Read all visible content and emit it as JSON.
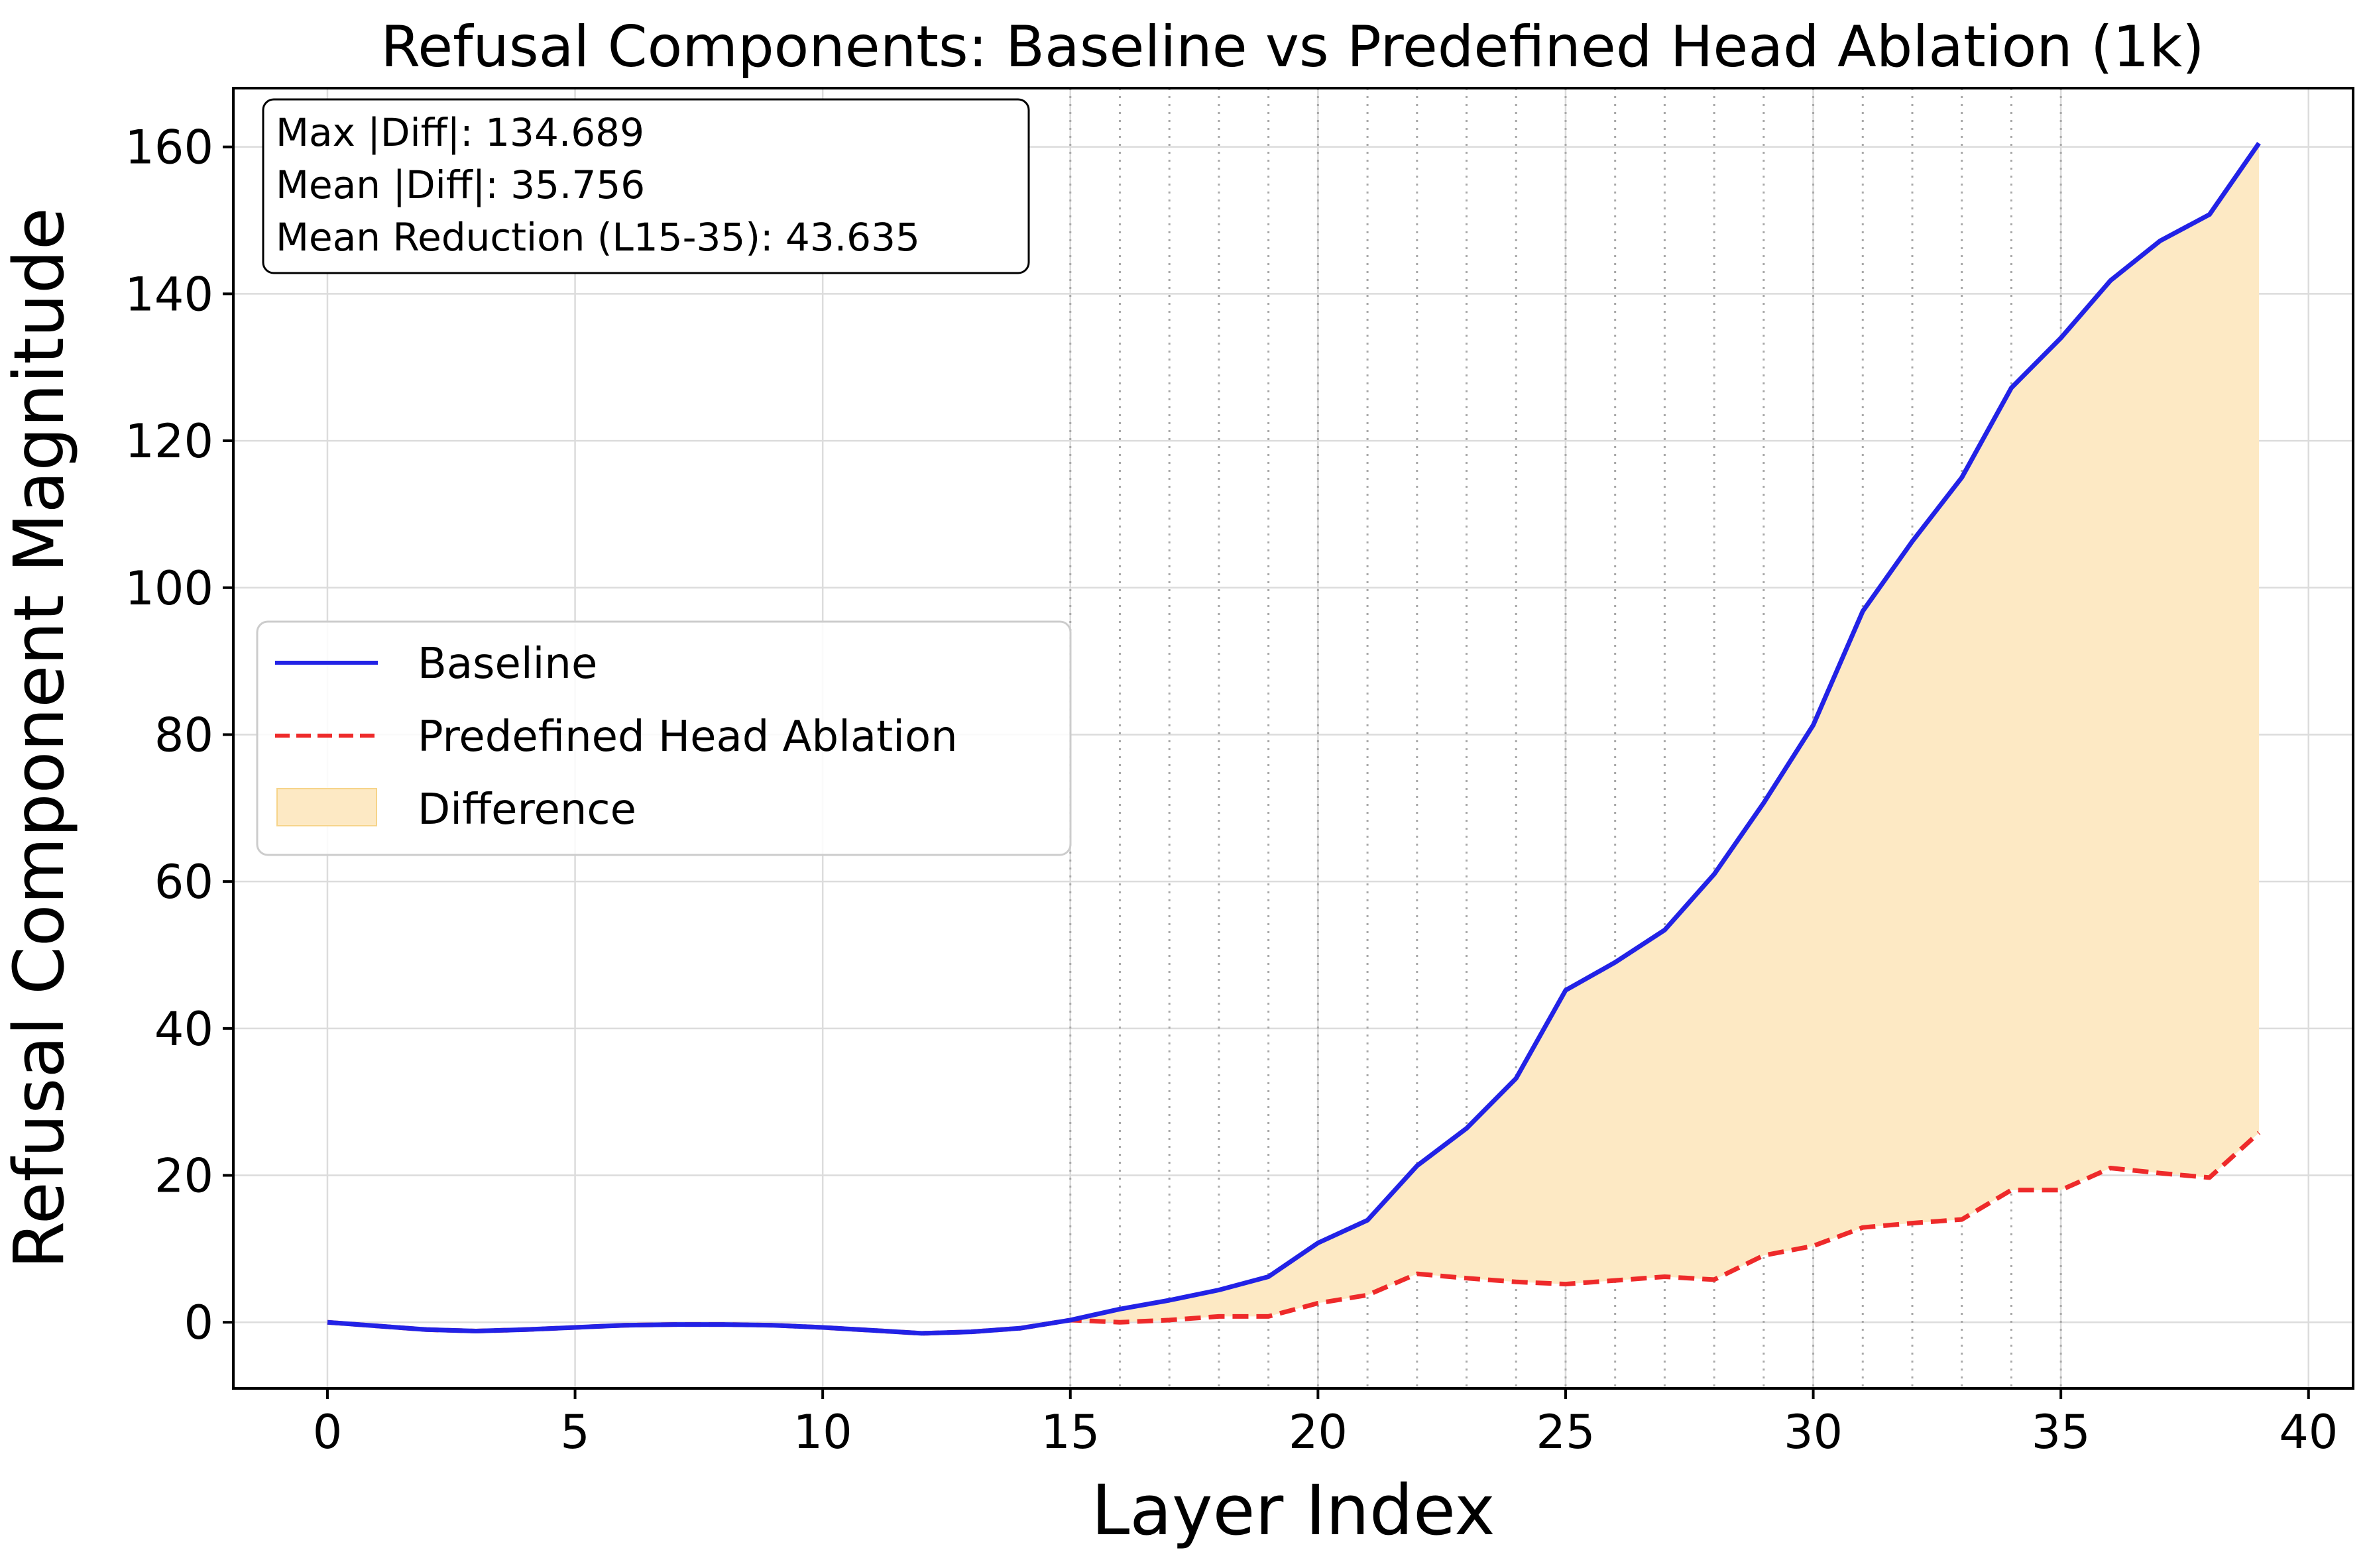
{
  "chart_data": {
    "type": "line",
    "title": "Refusal Components: Baseline vs Predefined Head Ablation (1k)",
    "xlabel": "Layer Index",
    "ylabel": "Refusal Component Magnitude",
    "xlim": [
      -1.9,
      40.9
    ],
    "ylim": [
      -9,
      168
    ],
    "xticks": [
      0,
      5,
      10,
      15,
      20,
      25,
      30,
      35,
      40
    ],
    "yticks": [
      0,
      20,
      40,
      60,
      80,
      100,
      120,
      140,
      160
    ],
    "grid": true,
    "legend_position": "center-left",
    "highlighted_layers": [
      15,
      16,
      17,
      18,
      19,
      20,
      21,
      22,
      23,
      24,
      25,
      26,
      27,
      28,
      29,
      30,
      31,
      32,
      33,
      34,
      35
    ],
    "x": [
      0,
      1,
      2,
      3,
      4,
      5,
      6,
      7,
      8,
      9,
      10,
      11,
      12,
      13,
      14,
      15,
      16,
      17,
      18,
      19,
      20,
      21,
      22,
      23,
      24,
      25,
      26,
      27,
      28,
      29,
      30,
      31,
      32,
      33,
      34,
      35,
      36,
      37,
      38,
      39
    ],
    "series": [
      {
        "name": "Baseline",
        "color": "#2222e6",
        "style": "solid",
        "values": [
          0,
          -0.5,
          -1.0,
          -1.2,
          -1.0,
          -0.7,
          -0.4,
          -0.3,
          -0.3,
          -0.4,
          -0.7,
          -1.1,
          -1.5,
          -1.3,
          -0.8,
          0.3,
          1.8,
          3.0,
          4.4,
          6.2,
          10.8,
          13.9,
          21.3,
          26.4,
          33.2,
          45.2,
          49.0,
          53.4,
          61.0,
          70.7,
          81.3,
          96.8,
          106.3,
          115.0,
          127.2,
          134.0,
          141.8,
          147.2,
          150.8,
          160.5
        ]
      },
      {
        "name": "Predefined Head Ablation",
        "color": "#ee2a2a",
        "style": "dashed",
        "values": [
          0,
          -0.5,
          -1.0,
          -1.2,
          -1.0,
          -0.7,
          -0.4,
          -0.3,
          -0.3,
          -0.4,
          -0.7,
          -1.1,
          -1.5,
          -1.3,
          -0.8,
          0.3,
          0.0,
          0.3,
          0.8,
          0.8,
          2.6,
          3.7,
          6.6,
          6.0,
          5.5,
          5.2,
          5.7,
          6.2,
          5.8,
          9.1,
          10.4,
          12.9,
          13.5,
          14.0,
          18.0,
          18.0,
          21.0,
          20.3,
          19.7,
          25.8
        ]
      }
    ],
    "fill_between": {
      "name": "Difference",
      "color": "#fde9c4",
      "edge": "#f6d48a"
    },
    "annotation": {
      "lines": [
        "Max |Diff|: 134.689",
        "Mean |Diff|: 35.756",
        "Mean Reduction (L15-35): 43.635"
      ]
    }
  }
}
